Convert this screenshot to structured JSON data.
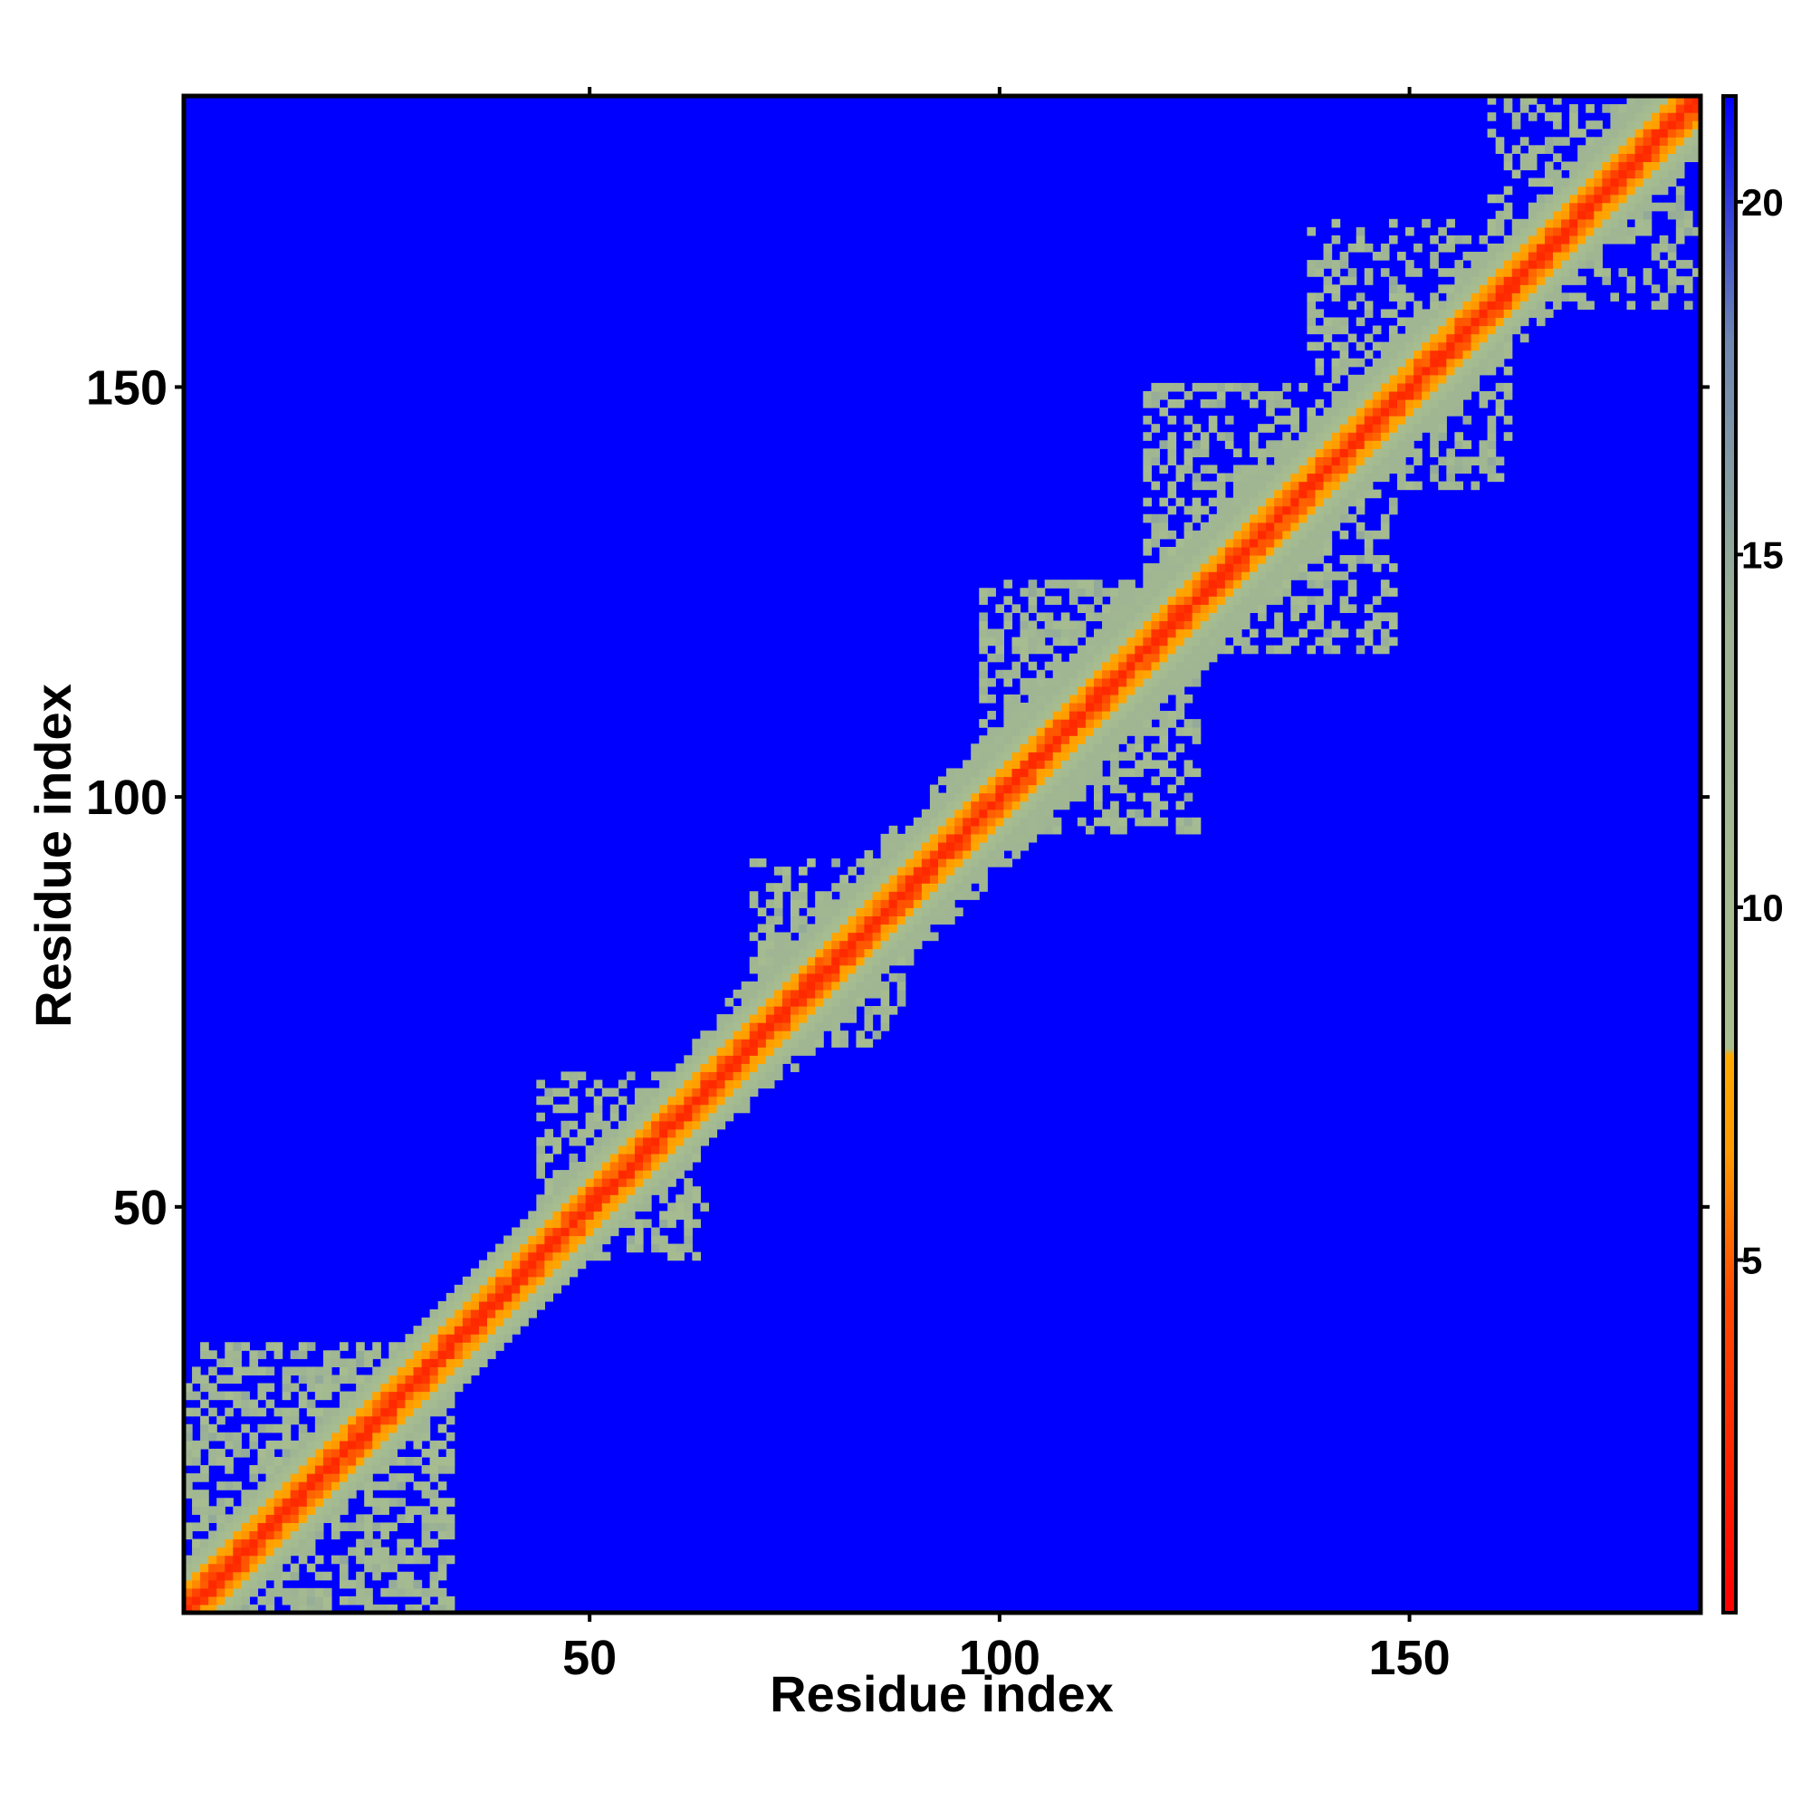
{
  "chart_data": {
    "type": "heatmap",
    "title": "",
    "xlabel": "Residue index",
    "ylabel": "Residue index",
    "n_residues": 185,
    "xlim": [
      1,
      185
    ],
    "ylim": [
      1,
      185
    ],
    "x_ticks": [
      50,
      100,
      150
    ],
    "y_ticks": [
      50,
      100,
      150
    ],
    "x_tick_labels": [
      "50",
      "100",
      "150"
    ],
    "y_tick_labels": [
      "50",
      "100",
      "150"
    ],
    "colorbar": {
      "range": [
        0,
        21.5
      ],
      "ticks": [
        5,
        10,
        15,
        20
      ],
      "tick_labels": [
        "5",
        "10",
        "15",
        "20"
      ],
      "stops": [
        {
          "value": 0,
          "color": "#ff0000"
        },
        {
          "value": 4.5,
          "color": "#ff4a00"
        },
        {
          "value": 6.5,
          "color": "#ff9900"
        },
        {
          "value": 7.9,
          "color": "#ffaa00"
        },
        {
          "value": 8.0,
          "color": "#a9bf8f"
        },
        {
          "value": 14.0,
          "color": "#9db394"
        },
        {
          "value": 18.0,
          "color": "#6f88b0"
        },
        {
          "value": 21.5,
          "color": "#0000ff"
        }
      ]
    },
    "cell_value_unit": "distance (colour scale)",
    "background_value": 21.5,
    "band_profile": [
      {
        "offset": 0,
        "value": 2.5
      },
      {
        "offset": 1,
        "value": 4.0
      },
      {
        "offset": 2,
        "value": 6.0
      },
      {
        "offset": 3,
        "value": 7.5
      },
      {
        "offset": 4,
        "value": 9.0
      },
      {
        "offset": 5,
        "value": 10.5
      },
      {
        "offset": 6,
        "value": 12.5
      }
    ],
    "band_halfwidth_by_residue": [
      {
        "x": 1,
        "w": 6
      },
      {
        "x": 20,
        "w": 5
      },
      {
        "x": 40,
        "w": 6
      },
      {
        "x": 60,
        "w": 6
      },
      {
        "x": 75,
        "w": 9
      },
      {
        "x": 90,
        "w": 9
      },
      {
        "x": 105,
        "w": 10
      },
      {
        "x": 125,
        "w": 10
      },
      {
        "x": 145,
        "w": 9
      },
      {
        "x": 165,
        "w": 8
      },
      {
        "x": 185,
        "w": 7
      }
    ],
    "contact_clusters": [
      {
        "x": [
          1,
          33
        ],
        "y": [
          1,
          33
        ],
        "density": 0.55
      },
      {
        "x": [
          44,
          64
        ],
        "y": [
          44,
          66
        ],
        "density": 0.45
      },
      {
        "x": [
          70,
          88
        ],
        "y": [
          70,
          92
        ],
        "density": 0.4
      },
      {
        "x": [
          98,
          124
        ],
        "y": [
          96,
          126
        ],
        "density": 0.5
      },
      {
        "x": [
          118,
          148
        ],
        "y": [
          118,
          150
        ],
        "density": 0.45
      },
      {
        "x": [
          138,
          162
        ],
        "y": [
          138,
          170
        ],
        "density": 0.4
      },
      {
        "x": [
          160,
          185
        ],
        "y": [
          160,
          185
        ],
        "density": 0.35
      }
    ]
  }
}
